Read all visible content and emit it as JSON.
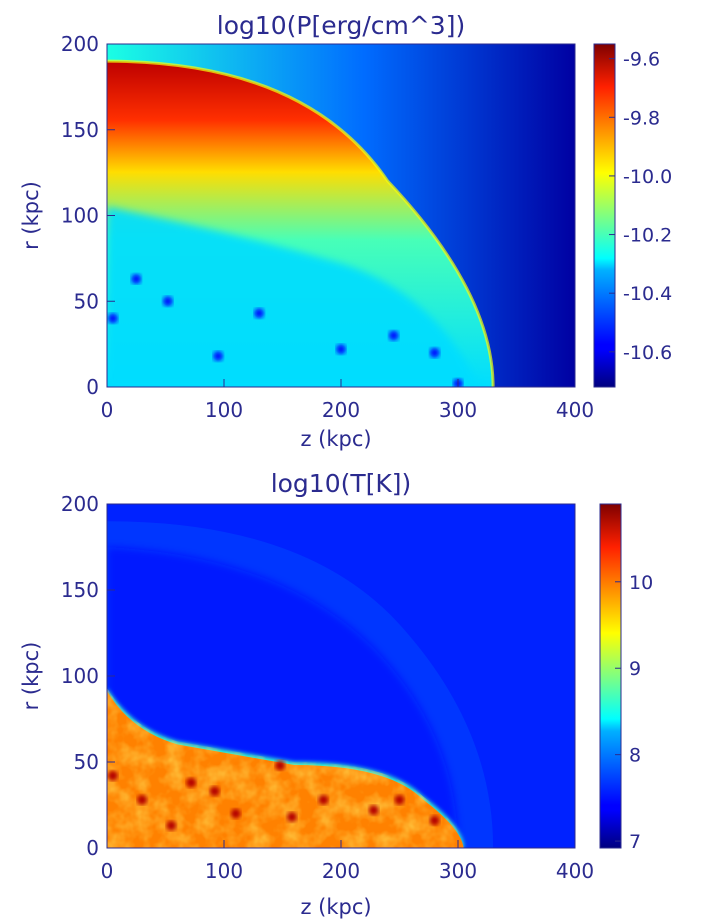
{
  "chart_data": [
    {
      "type": "heatmap",
      "title": "log10(P[erg/cm^3])",
      "xlabel": "z (kpc)",
      "ylabel": "r (kpc)",
      "xlim": [
        0,
        400
      ],
      "ylim": [
        0,
        200
      ],
      "x_ticks": [
        "0",
        "100",
        "200",
        "300",
        "400"
      ],
      "y_ticks": [
        "0",
        "50",
        "100",
        "150",
        "200"
      ],
      "colorbar": {
        "range": [
          -10.72,
          -9.55
        ],
        "ticks": [
          "-9.6",
          "-9.8",
          "-10.0",
          "-10.2",
          "-10.4",
          "-10.6"
        ],
        "tick_values": [
          -9.6,
          -9.8,
          -10.0,
          -10.2,
          -10.4,
          -10.6
        ]
      },
      "features": {
        "shock_front_r_axis_kpc": 190,
        "shock_front_z_axis_kpc": 330,
        "shocked_shell_value": -9.7,
        "interior_value": -10.32,
        "ambient_value_at_shock": -10.25,
        "ambient_value_at_edge": -10.68,
        "dense_spots": [
          {
            "z": 5,
            "r": 40
          },
          {
            "z": 25,
            "r": 63
          },
          {
            "z": 52,
            "r": 50
          },
          {
            "z": 95,
            "r": 18
          },
          {
            "z": 130,
            "r": 43
          },
          {
            "z": 200,
            "r": 22
          },
          {
            "z": 245,
            "r": 30
          },
          {
            "z": 280,
            "r": 20
          },
          {
            "z": 300,
            "r": 2
          }
        ]
      },
      "colormap": "jet"
    },
    {
      "type": "heatmap",
      "title": "log10(T[K])",
      "xlabel": "z (kpc)",
      "ylabel": "r (kpc)",
      "xlim": [
        0,
        400
      ],
      "ylim": [
        0,
        200
      ],
      "x_ticks": [
        "0",
        "100",
        "200",
        "300",
        "400"
      ],
      "y_ticks": [
        "0",
        "50",
        "100",
        "150",
        "200"
      ],
      "colorbar": {
        "range": [
          6.92,
          10.9
        ],
        "ticks": [
          "7",
          "8",
          "9",
          "10"
        ],
        "tick_values": [
          7,
          8,
          9,
          10
        ]
      },
      "features": {
        "ambient_value": 7.55,
        "shell_value": 7.65,
        "shell_front_r_axis_kpc": 190,
        "shell_front_z_axis_kpc": 330,
        "hot_cocoon_value": 9.9,
        "cocoon_front_z_kpc": 305,
        "cocoon_top_r_kpc": 93,
        "hot_spots": [
          {
            "z": 5,
            "r": 42
          },
          {
            "z": 30,
            "r": 28
          },
          {
            "z": 55,
            "r": 13
          },
          {
            "z": 72,
            "r": 38
          },
          {
            "z": 92,
            "r": 33
          },
          {
            "z": 110,
            "r": 20
          },
          {
            "z": 148,
            "r": 48
          },
          {
            "z": 158,
            "r": 18
          },
          {
            "z": 185,
            "r": 28
          },
          {
            "z": 228,
            "r": 22
          },
          {
            "z": 250,
            "r": 28
          },
          {
            "z": 280,
            "r": 16
          }
        ]
      },
      "colormap": "jet"
    }
  ]
}
